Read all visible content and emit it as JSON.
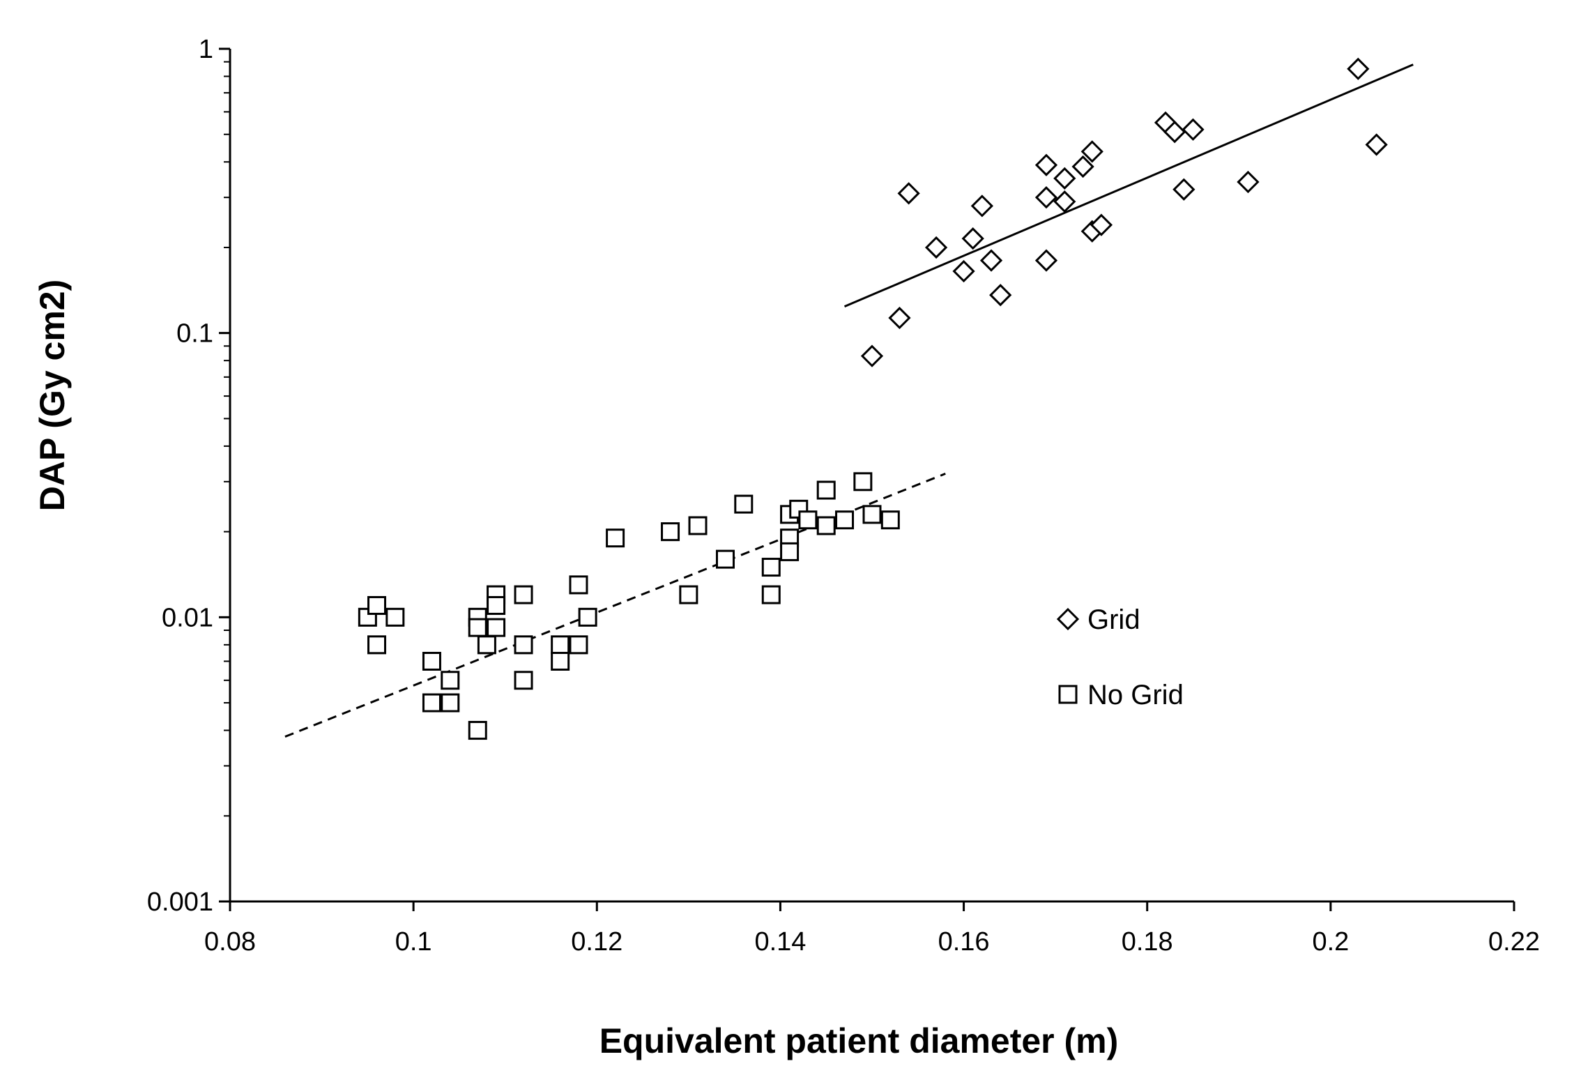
{
  "chart_data": {
    "type": "scatter",
    "title": "",
    "xlabel": "Equivalent patient diameter (m)",
    "ylabel": "DAP (Gy cm2)",
    "xlim": [
      0.08,
      0.22
    ],
    "ylim": [
      0.001,
      1
    ],
    "yscale": "log",
    "grid": false,
    "legend_position": "right",
    "x_ticks": [
      0.08,
      0.1,
      0.12,
      0.14,
      0.16,
      0.18,
      0.2,
      0.22
    ],
    "x_tick_labels": [
      "0.08",
      "0.1",
      "0.12",
      "0.14",
      "0.16",
      "0.18",
      "0.2",
      "0.22"
    ],
    "y_ticks": [
      0.001,
      0.01,
      0.1,
      1
    ],
    "y_tick_labels": [
      "0.001",
      "0.01",
      "0.1",
      "1"
    ],
    "series": [
      {
        "name": "Grid",
        "marker": "diamond",
        "color": "#000000",
        "points": [
          [
            0.15,
            0.083
          ],
          [
            0.153,
            0.113
          ],
          [
            0.154,
            0.31
          ],
          [
            0.157,
            0.2
          ],
          [
            0.16,
            0.165
          ],
          [
            0.161,
            0.215
          ],
          [
            0.162,
            0.28
          ],
          [
            0.163,
            0.18
          ],
          [
            0.164,
            0.136
          ],
          [
            0.169,
            0.39
          ],
          [
            0.169,
            0.3
          ],
          [
            0.169,
            0.18
          ],
          [
            0.171,
            0.35
          ],
          [
            0.171,
            0.29
          ],
          [
            0.173,
            0.385
          ],
          [
            0.174,
            0.435
          ],
          [
            0.174,
            0.228
          ],
          [
            0.175,
            0.24
          ],
          [
            0.182,
            0.55
          ],
          [
            0.183,
            0.51
          ],
          [
            0.184,
            0.32
          ],
          [
            0.185,
            0.52
          ],
          [
            0.191,
            0.34
          ],
          [
            0.203,
            0.85
          ],
          [
            0.205,
            0.46
          ]
        ],
        "trendline": {
          "x": [
            0.147,
            0.209
          ],
          "y": [
            0.124,
            0.88
          ],
          "style": "solid"
        }
      },
      {
        "name": "No Grid",
        "marker": "square",
        "color": "#000000",
        "points": [
          [
            0.095,
            0.01
          ],
          [
            0.096,
            0.011
          ],
          [
            0.096,
            0.008
          ],
          [
            0.098,
            0.01
          ],
          [
            0.102,
            0.007
          ],
          [
            0.102,
            0.005
          ],
          [
            0.104,
            0.006
          ],
          [
            0.104,
            0.005
          ],
          [
            0.107,
            0.01
          ],
          [
            0.107,
            0.0092
          ],
          [
            0.107,
            0.004
          ],
          [
            0.108,
            0.008
          ],
          [
            0.109,
            0.012
          ],
          [
            0.109,
            0.011
          ],
          [
            0.109,
            0.0092
          ],
          [
            0.112,
            0.012
          ],
          [
            0.112,
            0.008
          ],
          [
            0.112,
            0.006
          ],
          [
            0.116,
            0.008
          ],
          [
            0.116,
            0.007
          ],
          [
            0.118,
            0.013
          ],
          [
            0.118,
            0.008
          ],
          [
            0.119,
            0.01
          ],
          [
            0.122,
            0.019
          ],
          [
            0.128,
            0.02
          ],
          [
            0.13,
            0.012
          ],
          [
            0.131,
            0.021
          ],
          [
            0.134,
            0.016
          ],
          [
            0.136,
            0.025
          ],
          [
            0.139,
            0.015
          ],
          [
            0.139,
            0.012
          ],
          [
            0.141,
            0.023
          ],
          [
            0.141,
            0.019
          ],
          [
            0.141,
            0.017
          ],
          [
            0.142,
            0.024
          ],
          [
            0.143,
            0.022
          ],
          [
            0.145,
            0.028
          ],
          [
            0.145,
            0.021
          ],
          [
            0.147,
            0.022
          ],
          [
            0.149,
            0.03
          ],
          [
            0.15,
            0.023
          ],
          [
            0.152,
            0.022
          ]
        ],
        "trendline": {
          "x": [
            0.086,
            0.158
          ],
          "y": [
            0.0038,
            0.032
          ],
          "style": "dashed"
        }
      }
    ]
  }
}
